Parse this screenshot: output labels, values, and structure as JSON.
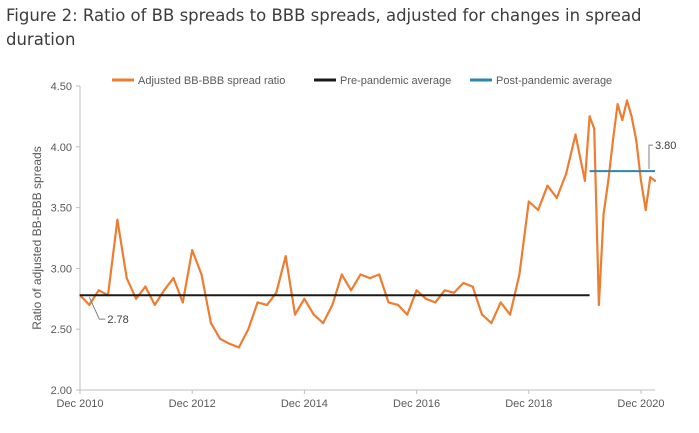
{
  "figure_title": "Figure 2: Ratio of BB spreads to BBB spreads, adjusted for changes in spread duration",
  "chart_data": {
    "type": "line",
    "title": "Figure 2: Ratio of BB spreads to BBB spreads, adjusted for changes in spread duration",
    "ylabel": "Ratio of adjusted BB-BBB spreads",
    "xlabel": "",
    "ylim": [
      2.0,
      4.5
    ],
    "xlim": [
      "2010-12",
      "2021-03"
    ],
    "y_ticks": [
      "2.00",
      "2.50",
      "3.00",
      "3.50",
      "4.00",
      "4.50"
    ],
    "x_ticks": [
      "Dec 2010",
      "Dec 2012",
      "Dec 2014",
      "Dec 2016",
      "Dec 2018",
      "Dec 2020"
    ],
    "grid": false,
    "legend_position": "top",
    "series": [
      {
        "name": "Adjusted BB-BBB spread ratio",
        "color": "#ED7D31",
        "x": [
          "2010-12",
          "2011-02",
          "2011-04",
          "2011-06",
          "2011-08",
          "2011-10",
          "2011-12",
          "2012-02",
          "2012-04",
          "2012-06",
          "2012-08",
          "2012-10",
          "2012-12",
          "2013-02",
          "2013-04",
          "2013-06",
          "2013-08",
          "2013-10",
          "2013-12",
          "2014-02",
          "2014-04",
          "2014-06",
          "2014-08",
          "2014-10",
          "2014-12",
          "2015-02",
          "2015-04",
          "2015-06",
          "2015-08",
          "2015-10",
          "2015-12",
          "2016-02",
          "2016-04",
          "2016-06",
          "2016-08",
          "2016-10",
          "2016-12",
          "2017-02",
          "2017-04",
          "2017-06",
          "2017-08",
          "2017-10",
          "2017-12",
          "2018-02",
          "2018-04",
          "2018-06",
          "2018-08",
          "2018-10",
          "2018-12",
          "2019-02",
          "2019-04",
          "2019-06",
          "2019-08",
          "2019-10",
          "2019-12",
          "2020-01",
          "2020-02",
          "2020-03",
          "2020-04",
          "2020-05",
          "2020-06",
          "2020-07",
          "2020-08",
          "2020-09",
          "2020-10",
          "2020-11",
          "2020-12",
          "2021-01",
          "2021-02",
          "2021-03"
        ],
        "y": [
          2.78,
          2.7,
          2.82,
          2.78,
          3.4,
          2.92,
          2.75,
          2.85,
          2.7,
          2.82,
          2.92,
          2.72,
          3.15,
          2.95,
          2.55,
          2.42,
          2.38,
          2.35,
          2.5,
          2.72,
          2.7,
          2.8,
          3.1,
          2.62,
          2.75,
          2.62,
          2.55,
          2.7,
          2.95,
          2.82,
          2.95,
          2.92,
          2.95,
          2.72,
          2.7,
          2.62,
          2.82,
          2.75,
          2.72,
          2.82,
          2.8,
          2.88,
          2.85,
          2.62,
          2.55,
          2.72,
          2.62,
          2.95,
          3.55,
          3.48,
          3.68,
          3.58,
          3.78,
          4.1,
          3.72,
          4.25,
          4.15,
          2.7,
          3.45,
          3.72,
          4.05,
          4.35,
          4.22,
          4.38,
          4.25,
          4.05,
          3.72,
          3.48,
          3.75,
          3.72
        ]
      },
      {
        "name": "Pre-pandemic average",
        "color": "#1A1A1A",
        "x": [
          "2010-12",
          "2020-01"
        ],
        "y": [
          2.78,
          2.78
        ]
      },
      {
        "name": "Post-pandemic average",
        "color": "#2E86AB",
        "x": [
          "2020-01",
          "2021-03"
        ],
        "y": [
          3.8,
          3.8
        ]
      }
    ],
    "annotations": [
      {
        "text": "2.78",
        "x": "2011-02",
        "y": 2.78
      },
      {
        "text": "3.80",
        "x": "2021-03",
        "y": 3.8
      }
    ]
  }
}
